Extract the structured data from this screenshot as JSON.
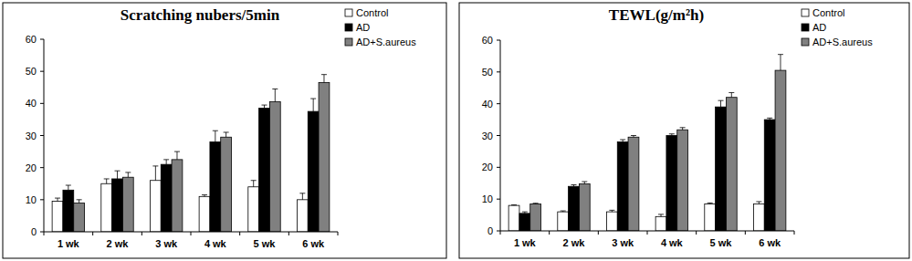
{
  "chart_data": [
    {
      "type": "bar",
      "title": "Scratching nubers/5min",
      "categories": [
        "1 wk",
        "2 wk",
        "3 wk",
        "4 wk",
        "5 wk",
        "6 wk"
      ],
      "series": [
        {
          "name": "Control",
          "color": "#ffffff",
          "values": [
            9.5,
            15,
            16,
            11,
            14,
            10
          ],
          "errors": [
            1,
            1.5,
            4.5,
            0.5,
            2,
            2
          ]
        },
        {
          "name": "AD",
          "color": "#000000",
          "values": [
            13,
            16.5,
            21,
            28,
            38.5,
            37.5
          ],
          "errors": [
            1.5,
            2.5,
            1.5,
            3.5,
            1,
            4
          ]
        },
        {
          "name": "AD+S.aureus",
          "color": "#808080",
          "values": [
            9,
            17,
            22.5,
            29.5,
            40.5,
            46.5
          ],
          "errors": [
            1,
            1.5,
            2.5,
            1.5,
            4,
            2.5
          ]
        }
      ],
      "ylim": [
        0,
        60
      ],
      "yticks": [
        0,
        10,
        20,
        30,
        40,
        50,
        60
      ],
      "grid": false,
      "legend": "top-right"
    },
    {
      "type": "bar",
      "title": "TEWL(g/m²h)",
      "categories": [
        "1 wk",
        "2 wk",
        "3 wk",
        "4 wk",
        "5 wk",
        "6 wk"
      ],
      "series": [
        {
          "name": "Control",
          "color": "#ffffff",
          "values": [
            8,
            6,
            6,
            4.5,
            8.5,
            8.5
          ],
          "errors": [
            0.2,
            0.3,
            0.5,
            0.7,
            0.3,
            0.7
          ]
        },
        {
          "name": "AD",
          "color": "#000000",
          "values": [
            5.5,
            14,
            28,
            30,
            39,
            35
          ],
          "errors": [
            0.5,
            0.5,
            0.7,
            0.5,
            2,
            0.5
          ]
        },
        {
          "name": "AD+S.aureus",
          "color": "#808080",
          "values": [
            8.5,
            14.8,
            29.5,
            31.8,
            42,
            50.5
          ],
          "errors": [
            0.2,
            0.7,
            0.5,
            0.7,
            1.5,
            5
          ]
        }
      ],
      "ylim": [
        0,
        60
      ],
      "yticks": [
        0,
        10,
        20,
        30,
        40,
        50,
        60
      ],
      "grid": false,
      "legend": "top-right"
    }
  ]
}
